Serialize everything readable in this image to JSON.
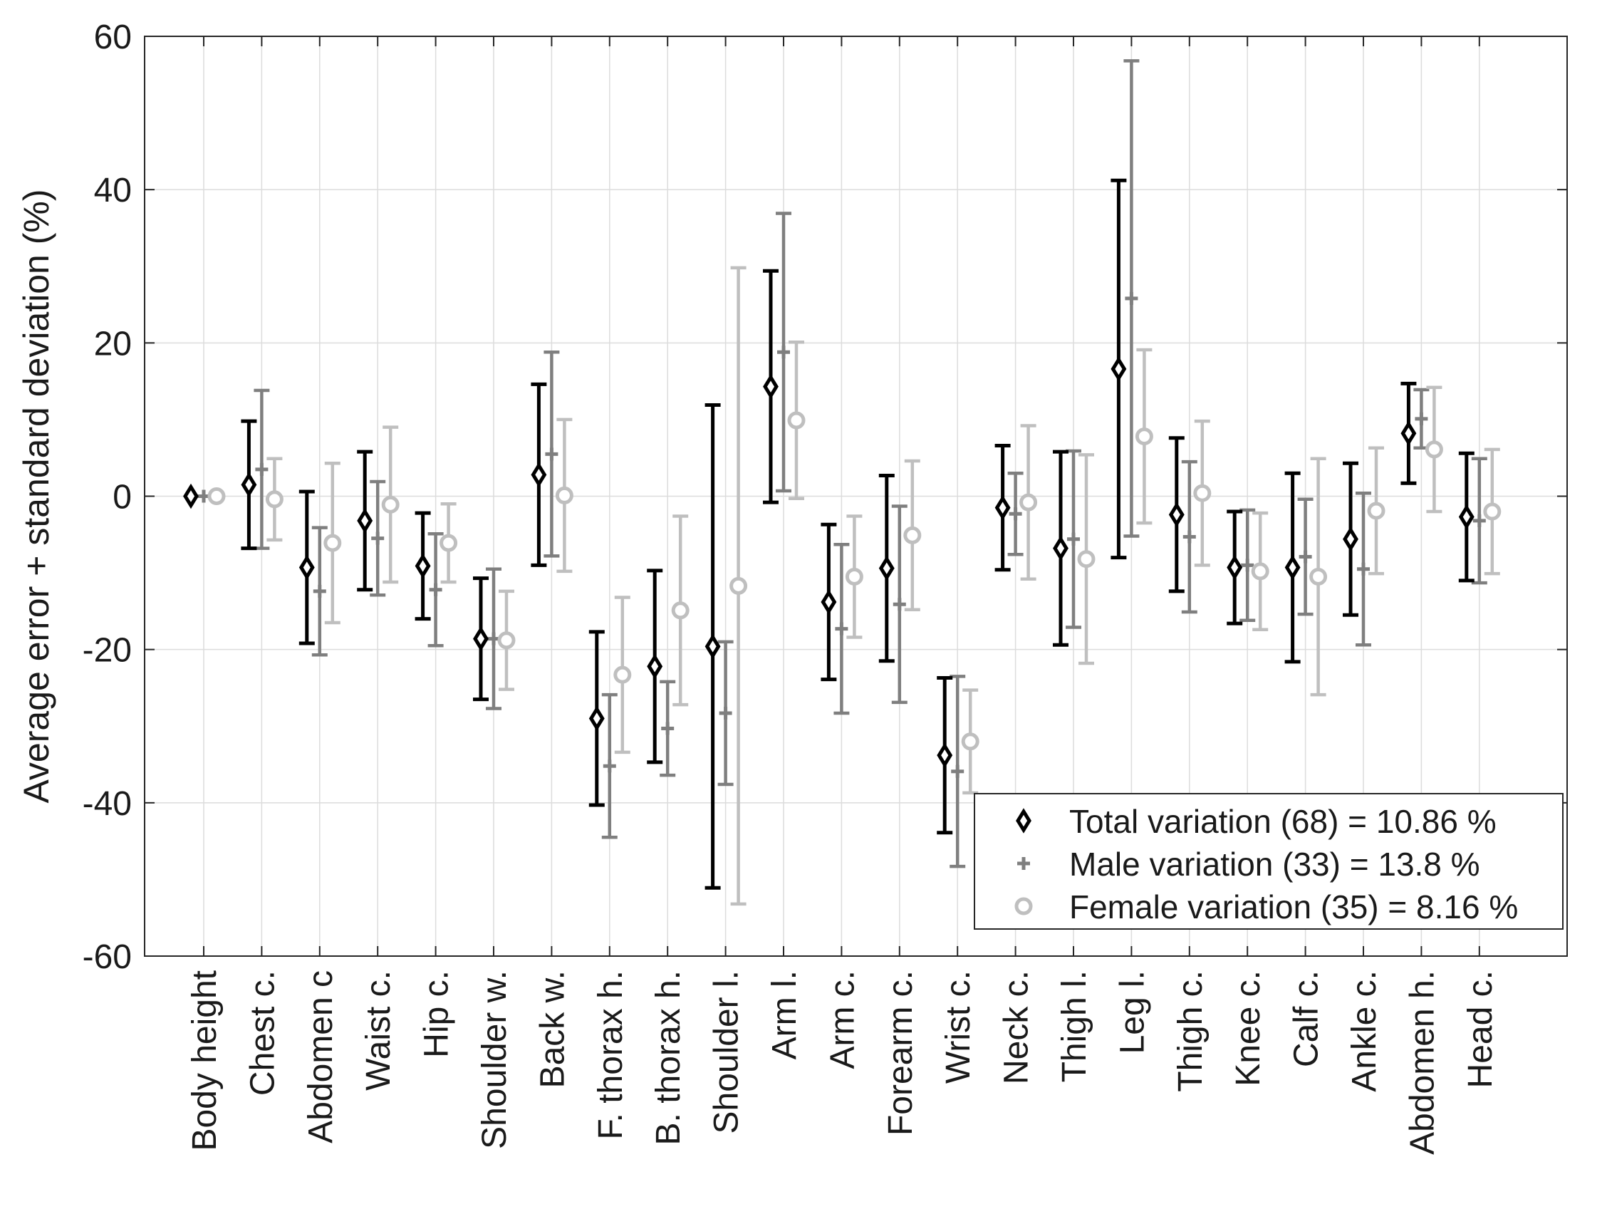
{
  "chart_data": {
    "type": "errorbar",
    "title": "",
    "xlabel": "",
    "ylabel": "Average error + standard deviation (%)",
    "ylim": [
      -60,
      60
    ],
    "yticks": [
      -60,
      -40,
      -20,
      0,
      20,
      40,
      60
    ],
    "grid": true,
    "legend_position": "bottom-right",
    "categories": [
      "Body height",
      "Chest c.",
      "Abdomen c",
      "Waist c.",
      "Hip c.",
      "Shoulder w.",
      "Back w.",
      "F. thorax h.",
      "B. thorax h.",
      "Shoulder l.",
      "Arm l.",
      "Arm c.",
      "Forearm c.",
      "Wrist c.",
      "Neck c.",
      "Thigh l.",
      "Leg l.",
      "Thigh c.",
      "Knee c.",
      "Calf c.",
      "Ankle c.",
      "Abdomen h.",
      "Head c."
    ],
    "series": [
      {
        "name": "Total variation (68) = 10.86 %",
        "marker": "diamond",
        "color": "#000000",
        "values": [
          0,
          1.5,
          -9.3,
          -3.2,
          -9.1,
          -18.6,
          2.8,
          -29.0,
          -22.2,
          -19.6,
          14.3,
          -13.8,
          -9.4,
          -33.8,
          -1.5,
          -6.8,
          16.6,
          -2.4,
          -9.3,
          -9.3,
          -5.6,
          8.2,
          -2.7
        ],
        "errors": [
          0,
          8.3,
          9.9,
          9.0,
          6.9,
          7.9,
          11.8,
          11.3,
          12.5,
          31.5,
          15.1,
          10.1,
          12.1,
          10.1,
          8.1,
          12.6,
          24.6,
          10.0,
          7.3,
          12.3,
          9.9,
          6.5,
          8.3
        ]
      },
      {
        "name": "Male variation (33) = 13.8 %",
        "marker": "plus",
        "color": "#7f7f7f",
        "values": [
          0,
          3.5,
          -12.4,
          -5.5,
          -12.2,
          -18.6,
          5.5,
          -35.2,
          -30.3,
          -28.3,
          18.8,
          -17.3,
          -14.1,
          -35.9,
          -2.3,
          -5.6,
          25.8,
          -5.3,
          -9.0,
          -7.9,
          -9.5,
          10.1,
          -3.2
        ],
        "errors": [
          0,
          10.3,
          8.3,
          7.4,
          7.3,
          9.1,
          13.3,
          9.3,
          6.1,
          9.3,
          18.1,
          11.0,
          12.8,
          12.4,
          5.3,
          11.5,
          31.0,
          9.8,
          7.2,
          7.5,
          9.9,
          3.8,
          8.1
        ]
      },
      {
        "name": "Female variation (35) = 8.16 %",
        "marker": "circle",
        "color": "#bfbfbf",
        "values": [
          0,
          -0.4,
          -6.1,
          -1.1,
          -6.1,
          -18.8,
          0.1,
          -23.3,
          -14.9,
          -11.7,
          9.9,
          -10.5,
          -5.1,
          -32.0,
          -0.8,
          -8.2,
          7.8,
          0.4,
          -9.8,
          -10.5,
          -1.9,
          6.1,
          -2.0
        ],
        "errors": [
          0,
          5.3,
          10.4,
          10.1,
          5.1,
          6.4,
          9.9,
          10.1,
          12.3,
          41.5,
          10.2,
          7.9,
          9.7,
          6.7,
          10.0,
          13.6,
          11.3,
          9.4,
          7.6,
          15.4,
          8.2,
          8.1,
          8.1
        ]
      }
    ]
  }
}
